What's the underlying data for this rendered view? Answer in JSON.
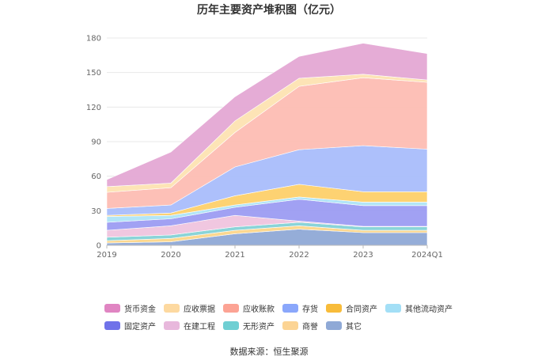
{
  "chart_data": {
    "type": "area",
    "stacked": true,
    "title": "历年主要资产堆积图（亿元）",
    "categories": [
      "2019",
      "2020",
      "2021",
      "2022",
      "2023",
      "2024Q1"
    ],
    "ylim": [
      0,
      180
    ],
    "yticks": [
      "0",
      "30",
      "60",
      "90",
      "120",
      "150",
      "180"
    ],
    "grid": true,
    "legend_position": "bottom",
    "series": [
      {
        "name": "其它",
        "color": "#8fa9d6",
        "values": [
          2,
          3,
          10,
          14,
          11,
          11
        ]
      },
      {
        "name": "商誉",
        "color": "#fcd68a",
        "values": [
          2,
          3,
          3,
          3,
          2,
          2
        ]
      },
      {
        "name": "无形资产",
        "color": "#84d2d6",
        "values": [
          3,
          3,
          3,
          3,
          3,
          3
        ]
      },
      {
        "name": "在建工程",
        "color": "#efc4de",
        "values": [
          6,
          8,
          10,
          1,
          0.5,
          0.5
        ]
      },
      {
        "name": "固定资产",
        "color": "#9c9cf2",
        "values": [
          7,
          6,
          7,
          19,
          18,
          18
        ]
      },
      {
        "name": "其他流动资产",
        "color": "#aee4f7",
        "values": [
          5,
          3,
          2,
          2,
          3,
          3
        ]
      },
      {
        "name": "合同资产",
        "color": "#fdd06a",
        "values": [
          1,
          2,
          8,
          11,
          9,
          9
        ]
      },
      {
        "name": "存货",
        "color": "#a9bdfb",
        "values": [
          6,
          7,
          25,
          30,
          40,
          37
        ]
      },
      {
        "name": "应收账款",
        "color": "#fdbdb3",
        "values": [
          14,
          15,
          30,
          55,
          59,
          58
        ]
      },
      {
        "name": "应收票据",
        "color": "#fde3b2",
        "values": [
          5,
          4,
          10,
          7,
          3,
          2
        ]
      },
      {
        "name": "货币资金",
        "color": "#e4a8d4",
        "values": [
          6,
          27,
          21,
          19,
          27,
          23
        ]
      }
    ],
    "legend_order": [
      "货币资金",
      "应收票据",
      "应收账款",
      "存货",
      "合同资产",
      "其他流动资产",
      "固定资产",
      "在建工程",
      "无形资产",
      "商誉",
      "其它"
    ],
    "legend_colors": [
      "#e085c2",
      "#fdd9a0",
      "#fca394",
      "#8aa7fb",
      "#f8bc3a",
      "#a3dff6",
      "#6f72e9",
      "#e8b8dc",
      "#6fcfd3",
      "#fcd494",
      "#8fa9d6"
    ]
  },
  "source": "数据来源：恒生聚源"
}
